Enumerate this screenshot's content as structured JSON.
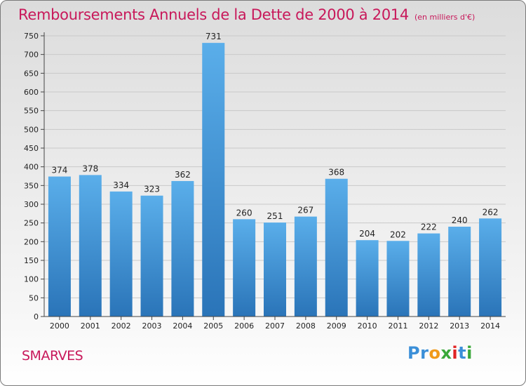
{
  "header": {
    "title": "Remboursements Annuels de la Dette de 2000 à 2014",
    "unit": "(en milliers d'€)"
  },
  "footer": {
    "commune": "SMARVES",
    "logo": [
      {
        "char": "P",
        "color": "#3b8fd8"
      },
      {
        "char": "r",
        "color": "#3b8fd8"
      },
      {
        "char": "o",
        "color": "#f09a1a"
      },
      {
        "char": "x",
        "color": "#3aa83a"
      },
      {
        "char": "i",
        "color": "#e02424"
      },
      {
        "char": "t",
        "color": "#3b8fd8"
      },
      {
        "char": "i",
        "color": "#3aa83a"
      }
    ]
  },
  "chart_data": {
    "type": "bar",
    "categories": [
      "2000",
      "2001",
      "2002",
      "2003",
      "2004",
      "2005",
      "2006",
      "2007",
      "2008",
      "2009",
      "2010",
      "2011",
      "2012",
      "2013",
      "2014"
    ],
    "values": [
      374,
      378,
      334,
      323,
      362,
      731,
      260,
      251,
      267,
      368,
      204,
      202,
      222,
      240,
      262
    ],
    "title": "Remboursements Annuels de la Dette de 2000 à 2014",
    "ylim": [
      0,
      750
    ],
    "yticks": [
      0,
      50,
      100,
      150,
      200,
      250,
      300,
      350,
      400,
      450,
      500,
      550,
      600,
      650,
      700,
      750
    ],
    "grid": true,
    "colors": {
      "bar_top": "#5aaeea",
      "bar_bottom": "#2a74b8",
      "grid": "#c9c9c9",
      "axis": "#444444",
      "label": "#222222"
    }
  }
}
